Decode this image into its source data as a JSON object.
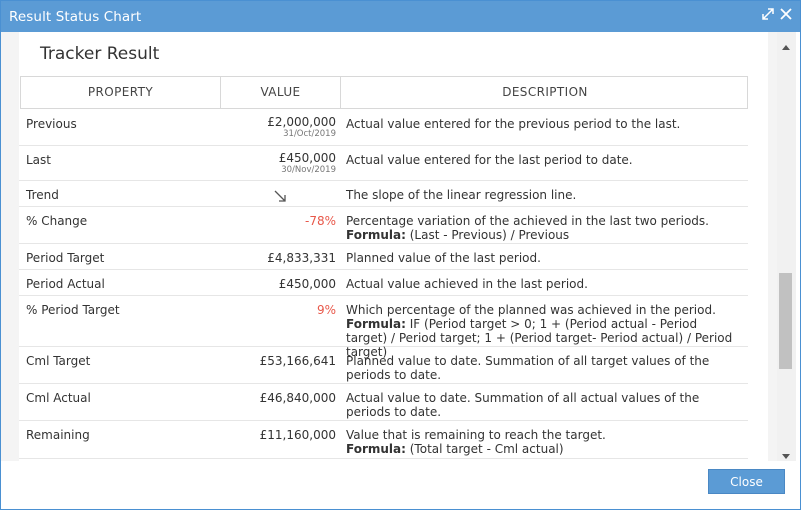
{
  "window": {
    "title": "Result Status Chart"
  },
  "panel": {
    "title": "Tracker Result"
  },
  "table": {
    "headers": {
      "property": "PROPERTY",
      "value": "VALUE",
      "description": "DESCRIPTION"
    },
    "rows": [
      {
        "property": "Previous",
        "value": "£2,000,000",
        "date": "31/Oct/2019",
        "description": "Actual value entered for the previous period to the last."
      },
      {
        "property": "Last",
        "value": "£450,000",
        "date": "30/Nov/2019",
        "description": "Actual value entered for the last period to date."
      },
      {
        "property": "Trend",
        "trend_icon": "arrow-down-right-icon",
        "description": "The slope of the linear regression line."
      },
      {
        "property": "% Change",
        "value": "-78%",
        "description": "Percentage variation of the achieved in the last two periods.",
        "formula_label": "Formula:",
        "formula": " (Last - Previous) / Previous"
      },
      {
        "property": "Period Target",
        "value": "£4,833,331",
        "description": "Planned value of the last period."
      },
      {
        "property": "Period Actual",
        "value": "£450,000",
        "description": "Actual value achieved in the last period."
      },
      {
        "property": "% Period Target",
        "value": "9%",
        "description": "Which percentage of the planned was achieved in the period.",
        "formula_label": "Formula:",
        "formula": " IF (Period target > 0; 1 + (Period actual - Period target) / Period target; 1 + (Period target- Period actual) / Period target)"
      },
      {
        "property": "Cml Target",
        "value": "£53,166,641",
        "description": "Planned value to date. Summation of all target values of the periods to date."
      },
      {
        "property": "Cml Actual",
        "value": "£46,840,000",
        "description": "Actual value to date. Summation of all actual values of the periods to date."
      },
      {
        "property": "Remaining",
        "value": "£11,160,000",
        "description": "Value that is remaining to reach the target.",
        "formula_label": "Formula:",
        "formula": " (Total target - Cml actual)"
      }
    ]
  },
  "footer": {
    "close_label": "Close"
  },
  "colors": {
    "titlebar": "#5b9bd5",
    "negative": "#e8584a",
    "button": "#5b9bd5"
  }
}
